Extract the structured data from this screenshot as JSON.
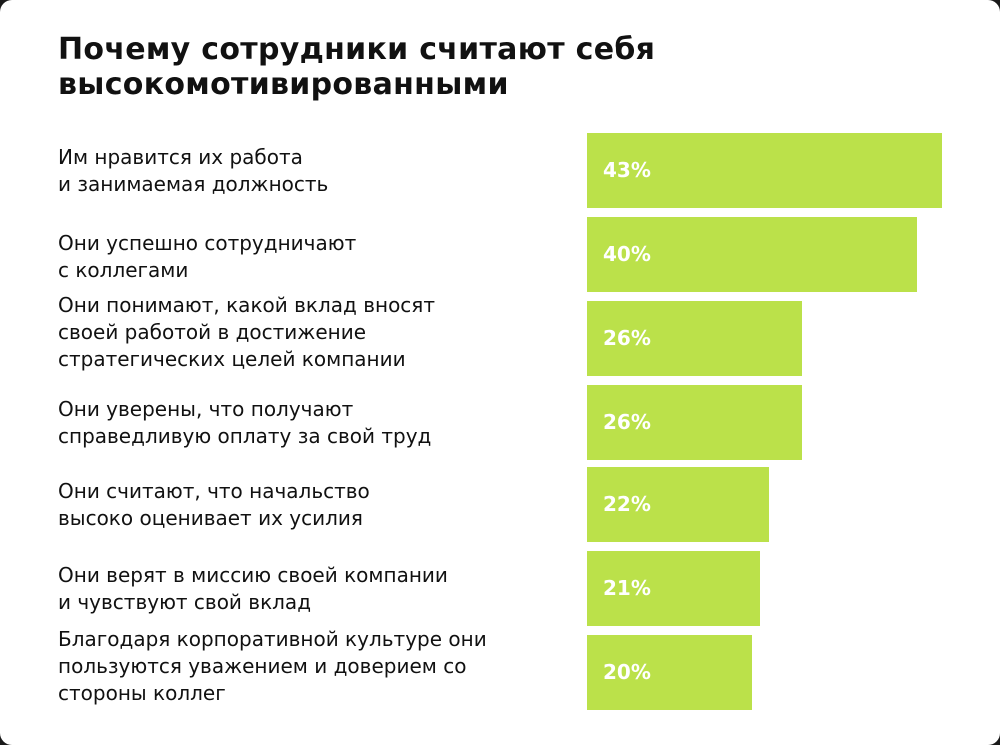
{
  "chart_data": {
    "type": "bar",
    "orientation": "horizontal",
    "title": "Почему сотрудники считают себя высокомотивированными",
    "categories": [
      "Им нравится их работа\nи занимаемая должность",
      "Они успешно сотрудничают\nс коллегами",
      "Они понимают, какой вклад вносят\nсвоей работой в достижение\nстратегических целей компании",
      "Они уверены, что получают\nсправедливую оплату за свой труд",
      "Они считают, что начальство\nвысоко оценивает их усилия",
      "Они верят в миссию своей компании\nи чувствуют свой вклад",
      "Благодаря корпоративной культуре они\nпользуются уважением и доверием со\nстороны коллег"
    ],
    "values": [
      43,
      40,
      26,
      26,
      22,
      21,
      20
    ],
    "value_labels": [
      "43%",
      "40%",
      "26%",
      "26%",
      "22%",
      "21%",
      "20%"
    ],
    "unit": "%",
    "bar_color": "#bbe14a",
    "label_color": "#ffffff",
    "grid": false,
    "legend": false
  }
}
